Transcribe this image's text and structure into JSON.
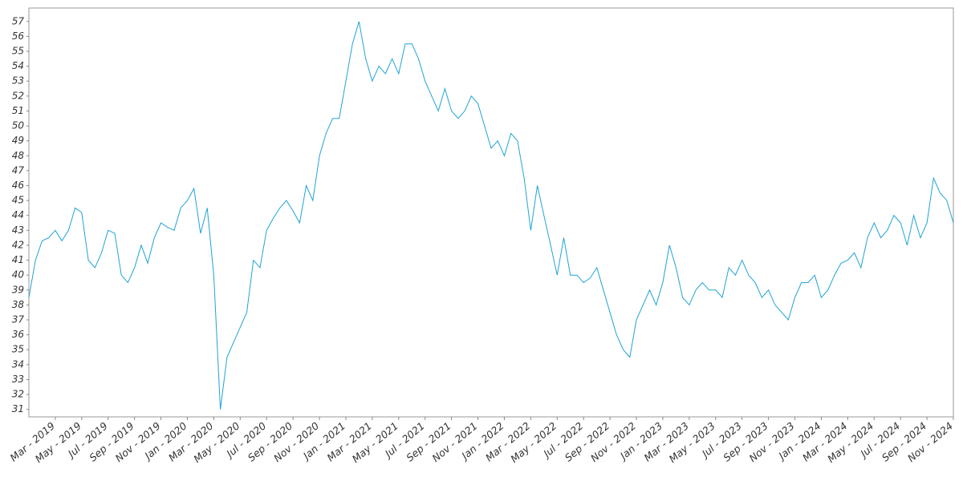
{
  "chart_data": {
    "type": "line",
    "color": "#1fa3d6",
    "categories": [
      null,
      null,
      null,
      null,
      "Mar - 2019",
      null,
      null,
      null,
      "May - 2019",
      null,
      null,
      null,
      "Jul - 2019",
      null,
      null,
      null,
      "Sep - 2019",
      null,
      null,
      null,
      "Nov - 2019",
      null,
      null,
      null,
      "Jan - 2020",
      null,
      null,
      null,
      "Mar - 2020",
      null,
      null,
      null,
      "May - 2020",
      null,
      null,
      null,
      "Jul - 2020",
      null,
      null,
      null,
      "Sep - 2020",
      null,
      null,
      null,
      "Nov - 2020",
      null,
      null,
      null,
      "Jan - 2021",
      null,
      null,
      null,
      "Mar - 2021",
      null,
      null,
      null,
      "May - 2021",
      null,
      null,
      null,
      "Jul - 2021",
      null,
      null,
      null,
      "Sep - 2021",
      null,
      null,
      null,
      "Nov - 2021",
      null,
      null,
      null,
      "Jan - 2022",
      null,
      null,
      null,
      "Mar - 2022",
      null,
      null,
      null,
      "May - 2022",
      null,
      null,
      null,
      "Jul - 2022",
      null,
      null,
      null,
      "Sep - 2022",
      null,
      null,
      null,
      "Nov - 2022",
      null,
      null,
      null,
      "Jan - 2023",
      null,
      null,
      null,
      "Mar - 2023",
      null,
      null,
      null,
      "May - 2023",
      null,
      null,
      null,
      "Jul - 2023",
      null,
      null,
      null,
      "Sep - 2023",
      null,
      null,
      null,
      "Nov - 2023",
      null,
      null,
      null,
      "Jan - 2024",
      null,
      null,
      null,
      "Mar - 2024",
      null,
      null,
      null,
      "May - 2024",
      null,
      null,
      null,
      "Jul - 2024",
      null,
      null,
      null,
      "Sep - 2024",
      null,
      null,
      null,
      "Nov - 2024"
    ],
    "values": [
      38.5,
      41,
      42.3,
      42.5,
      43,
      42.3,
      43,
      44.5,
      44.2,
      41,
      40.5,
      41.5,
      43,
      42.8,
      40,
      39.5,
      40.5,
      42,
      40.8,
      42.5,
      43.5,
      43.2,
      43,
      44.5,
      45,
      45.8,
      42.8,
      44.5,
      40,
      31,
      34.5,
      35.5,
      36.5,
      37.5,
      41,
      40.5,
      43,
      43.8,
      44.5,
      45,
      44.3,
      43.5,
      46,
      45,
      48,
      49.5,
      50.5,
      50.5,
      53,
      55.5,
      57,
      54.5,
      53,
      54,
      53.5,
      54.5,
      53.5,
      55.5,
      55.5,
      54.5,
      53,
      52,
      51,
      52.5,
      51,
      50.5,
      51,
      52,
      51.5,
      50,
      48.5,
      49,
      48,
      49.5,
      49,
      46.5,
      43,
      46,
      44,
      42,
      40,
      42.5,
      40,
      40,
      39.5,
      39.8,
      40.5,
      39,
      37.5,
      36,
      35,
      34.5,
      37,
      38,
      39,
      38,
      39.5,
      42,
      40.5,
      38.5,
      38,
      39,
      39.5,
      39,
      39,
      38.5,
      40.5,
      40,
      41,
      40,
      39.5,
      38.5,
      39,
      38,
      37.5,
      37,
      38.5,
      39.5,
      39.5,
      40,
      38.5,
      39,
      40,
      40.8,
      41,
      41.5,
      40.5,
      42.5,
      43.5,
      42.5,
      43,
      44,
      43.5,
      42,
      44,
      42.5,
      43.5,
      46.5,
      45.5,
      45,
      43.5
    ],
    "ylim": [
      30.5,
      57.9
    ],
    "yticks": [
      31,
      32,
      33,
      34,
      35,
      36,
      37,
      38,
      39,
      40,
      41,
      42,
      43,
      44,
      45,
      46,
      47,
      48,
      49,
      50,
      51,
      52,
      53,
      54,
      55,
      56,
      57
    ]
  }
}
